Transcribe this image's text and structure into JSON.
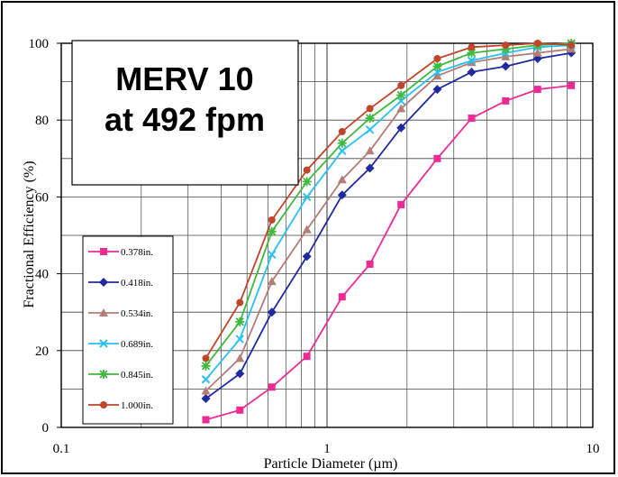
{
  "chart_data": {
    "type": "line",
    "title_lines": [
      "MERV 10",
      "at 492 fpm"
    ],
    "xlabel": "Particle Diameter (µm)",
    "ylabel": "Fractional Efficiency (%)",
    "x_scale": "log",
    "xlim": [
      0.1,
      10
    ],
    "ylim": [
      0,
      100
    ],
    "x_ticks": [
      {
        "value": 0.1,
        "label": "0.1"
      },
      {
        "value": 1,
        "label": "1"
      },
      {
        "value": 10,
        "label": "10"
      }
    ],
    "y_ticks": [
      0,
      20,
      40,
      60,
      80,
      100
    ],
    "grid": true,
    "legend_position": "lower-left",
    "x": [
      0.35,
      0.47,
      0.62,
      0.84,
      1.14,
      1.45,
      1.9,
      2.6,
      3.5,
      4.7,
      6.2,
      8.3
    ],
    "series": [
      {
        "name": "0.378in.",
        "color": "#ee2a95",
        "marker": "square",
        "values": [
          2,
          4.5,
          10.5,
          18.5,
          34,
          42.5,
          58,
          70,
          80.5,
          85,
          88,
          89
        ]
      },
      {
        "name": "0.418in.",
        "color": "#1f2aa0",
        "marker": "diamond",
        "values": [
          7.5,
          14,
          30,
          44.5,
          60.5,
          67.5,
          78,
          88,
          92.5,
          94,
          96,
          97.5
        ]
      },
      {
        "name": "0.534in.",
        "color": "#b47d77",
        "marker": "triangle",
        "values": [
          9.5,
          18,
          38,
          51.5,
          64.5,
          72,
          83,
          91.5,
          95,
          96.5,
          97.5,
          98.5
        ]
      },
      {
        "name": "0.689in.",
        "color": "#29c1f0",
        "marker": "x",
        "values": [
          12.5,
          23,
          45,
          60,
          72,
          77.5,
          85,
          92.5,
          95.5,
          97.5,
          99,
          99.5
        ]
      },
      {
        "name": "0.845in.",
        "color": "#3fb83f",
        "marker": "asterisk",
        "values": [
          16,
          27.5,
          51,
          64,
          74,
          80.5,
          86.5,
          94,
          97.5,
          98.5,
          99.5,
          100
        ]
      },
      {
        "name": "1.000in.",
        "color": "#c0452a",
        "marker": "circle",
        "values": [
          18,
          32.5,
          54,
          67,
          77,
          83,
          89,
          96,
          99,
          99.5,
          100,
          99.5
        ]
      }
    ]
  },
  "colors": {
    "frame": "#000000",
    "grid": "#444444",
    "background": "#ffffff"
  }
}
